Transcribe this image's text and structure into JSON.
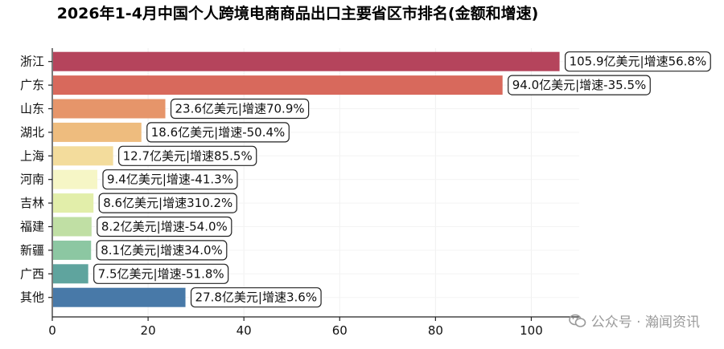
{
  "chart_data": {
    "type": "bar",
    "orientation": "horizontal",
    "title": "2026年1-4月中国个人跨境电商商品出口主要省区市排名(金额和增速)",
    "categories": [
      "浙江",
      "广东",
      "山东",
      "湖北",
      "上海",
      "河南",
      "吉林",
      "福建",
      "新疆",
      "广西",
      "其他"
    ],
    "values": [
      105.9,
      94.0,
      23.6,
      18.6,
      12.7,
      9.4,
      8.6,
      8.2,
      8.1,
      7.5,
      27.8
    ],
    "growth_pct": [
      56.8,
      -35.5,
      70.9,
      -50.4,
      85.5,
      -41.3,
      310.2,
      -54.0,
      34.0,
      -51.8,
      3.6
    ],
    "data_labels": [
      "105.9亿美元|增速56.8%",
      "94.0亿美元|增速-35.5%",
      "23.6亿美元|增速70.9%",
      "18.6亿美元|增速-50.4%",
      "12.7亿美元|增速85.5%",
      "9.4亿美元|增速-41.3%",
      "8.6亿美元|增速310.2%",
      "8.2亿美元|增速-54.0%",
      "8.1亿美元|增速34.0%",
      "7.5亿美元|增速-51.8%",
      "27.8亿美元|增速3.6%"
    ],
    "colors": [
      "#b5445c",
      "#d8695c",
      "#e6956a",
      "#eebc7e",
      "#f3dc9c",
      "#f6f6c6",
      "#e2eeaa",
      "#c0dfa4",
      "#8cc7a2",
      "#5fa49e",
      "#4879a8"
    ],
    "xlim": [
      0,
      110
    ],
    "xticks": [
      0,
      20,
      40,
      60,
      80,
      100
    ],
    "grid": true,
    "xlabel": "",
    "ylabel": ""
  },
  "watermark": {
    "text": "公众号 · 瀚闻资讯",
    "icon": "wechat-icon"
  }
}
